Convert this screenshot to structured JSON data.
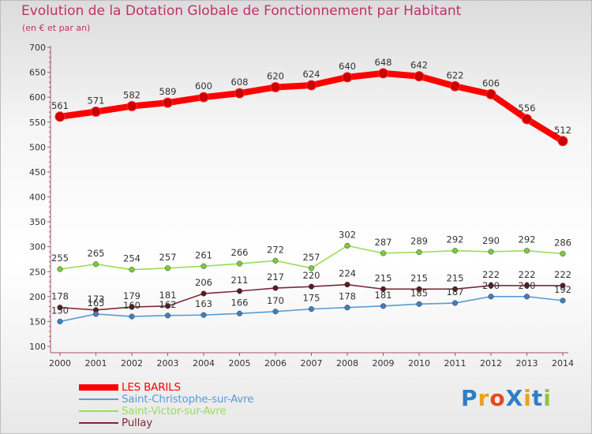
{
  "title": "Evolution de la Dotation Globale de Fonctionnement par Habitant",
  "subtitle": "(en € et par an)",
  "logo": {
    "text": "ProXiti",
    "letter_colors": [
      "#2e7fc4",
      "#e8a21b",
      "#e34b1c",
      "#2e7fc4",
      "#e8a21b",
      "#2e7fc4",
      "#8cc63f"
    ]
  },
  "chart_data": {
    "type": "line",
    "x": [
      "2000",
      "2001",
      "2002",
      "2003",
      "2004",
      "2005",
      "2006",
      "2007",
      "2008",
      "2009",
      "2010",
      "2011",
      "2012",
      "2013",
      "2014"
    ],
    "ylim": [
      100,
      700
    ],
    "yticks": [
      100,
      150,
      200,
      250,
      300,
      350,
      400,
      450,
      500,
      550,
      600,
      650,
      700
    ],
    "grid": false,
    "legend_position": "bottom-left",
    "series": [
      {
        "name": "LES BARILS",
        "color": "#ff0000",
        "marker_color": "#cc0000",
        "emphasis": true,
        "values": [
          561,
          571,
          582,
          589,
          600,
          608,
          620,
          624,
          640,
          648,
          642,
          622,
          606,
          556,
          512
        ]
      },
      {
        "name": "Saint-Christophe-sur-Avre",
        "color": "#5b9bd5",
        "marker_color": "#3f7fc0",
        "values": [
          150,
          165,
          160,
          162,
          163,
          166,
          170,
          175,
          178,
          181,
          185,
          187,
          200,
          200,
          192
        ]
      },
      {
        "name": "Saint-Victor-sur-Avre",
        "color": "#99dd55",
        "marker_color": "#7ccc3a",
        "values": [
          255,
          265,
          254,
          257,
          261,
          266,
          272,
          257,
          302,
          287,
          289,
          292,
          290,
          292,
          286
        ]
      },
      {
        "name": "Pullay",
        "color": "#7a2a3a",
        "marker_color": "#5e1a22",
        "values": [
          178,
          173,
          179,
          181,
          206,
          211,
          217,
          220,
          224,
          215,
          215,
          215,
          222,
          222,
          222
        ]
      }
    ]
  }
}
